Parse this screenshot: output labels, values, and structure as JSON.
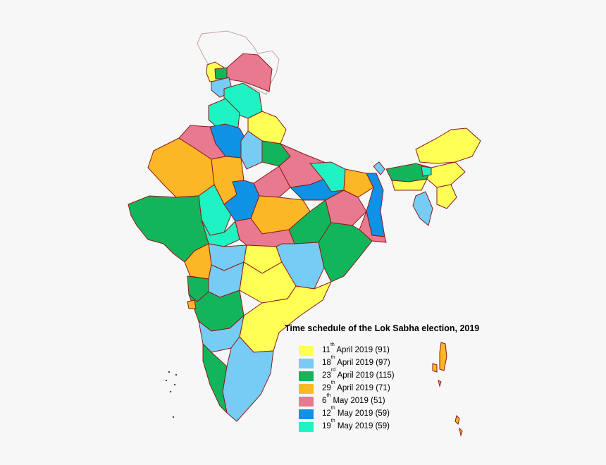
{
  "title": "Time schedule of the Lok Sabha election, 2019",
  "phases": [
    {
      "day": "11",
      "suffix": "th",
      "rest": "April 2019",
      "seats": "(91)",
      "color": "#ffff55"
    },
    {
      "day": "18",
      "suffix": "th",
      "rest": "April 2019",
      "seats": "(97)",
      "color": "#77ccf5"
    },
    {
      "day": "23",
      "suffix": "rd",
      "rest": "April 2019",
      "seats": "(115)",
      "color": "#13b55a"
    },
    {
      "day": "29",
      "suffix": "th",
      "rest": "April 2019",
      "seats": "(71)",
      "color": "#fbb726"
    },
    {
      "day": "6",
      "suffix": "th",
      "rest": "May 2019",
      "seats": "(51)",
      "color": "#e8798f"
    },
    {
      "day": "12",
      "suffix": "th",
      "rest": "May 2019",
      "seats": "(59)",
      "color": "#0d92e6"
    },
    {
      "day": "19",
      "suffix": "th",
      "rest": "May 2019",
      "seats": "(59)",
      "color": "#1ff2c3"
    }
  ],
  "colors": {
    "state_border": "#8a1a1a",
    "district_line": "#444444",
    "disputed_outline": "#c9a0a0",
    "background": "#f7f7f7"
  }
}
